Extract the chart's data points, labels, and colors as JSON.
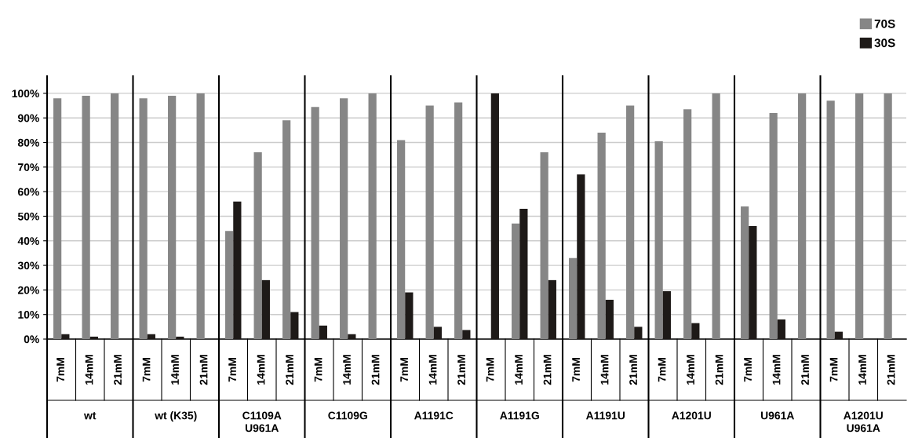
{
  "chart_data": {
    "type": "bar",
    "categories": [
      "7mM",
      "14mM",
      "21mM",
      "7mM",
      "14mM",
      "21mM",
      "7mM",
      "14mM",
      "21mM",
      "7mM",
      "14mM",
      "21mM",
      "7mM",
      "14mM",
      "21mM",
      "7mM",
      "14mM",
      "21mM",
      "7mM",
      "14mM",
      "21mM",
      "7mM",
      "14mM",
      "21mM",
      "7mM",
      "14mM",
      "21mM",
      "7mM",
      "14mM",
      "21mM"
    ],
    "series": [
      {
        "name": "70S",
        "color": "#868686",
        "values": [
          98,
          99,
          100,
          98,
          99,
          100,
          44,
          76,
          89,
          94.5,
          98,
          100,
          81,
          95,
          96.3,
          0,
          47,
          76,
          33,
          84,
          95,
          80.5,
          93.5,
          100,
          54,
          92,
          100,
          97,
          100,
          100
        ]
      },
      {
        "name": "30S",
        "color": "#1e1a18",
        "values": [
          2,
          1,
          0,
          2,
          1,
          0,
          56,
          24,
          11,
          5.5,
          2,
          0,
          19,
          5,
          3.7,
          100,
          53,
          24,
          67,
          16,
          5,
          19.5,
          6.5,
          0,
          46,
          8,
          0,
          3,
          0,
          0
        ]
      }
    ],
    "annotations": [
      "wt",
      "wt (K35)",
      "C1109A\nU961A",
      "C1109G",
      "A1191C",
      "A1191G",
      "A1191U",
      "A1201U",
      "U961A",
      "A1201U\nU961A"
    ],
    "ylim": [
      0,
      107
    ],
    "yticks": [
      {
        "value": 0,
        "label": "0%"
      },
      {
        "value": 10,
        "label": "10%"
      },
      {
        "value": 20,
        "label": "20%"
      },
      {
        "value": 30,
        "label": "30%"
      },
      {
        "value": 40,
        "label": "40%"
      },
      {
        "value": 50,
        "label": "50%"
      },
      {
        "value": 60,
        "label": "60%"
      },
      {
        "value": 70,
        "label": "70%"
      },
      {
        "value": 80,
        "label": "80%"
      },
      {
        "value": 90,
        "label": "90%"
      },
      {
        "value": 100,
        "label": "100%"
      }
    ],
    "grid": "y",
    "legend": "top right"
  }
}
